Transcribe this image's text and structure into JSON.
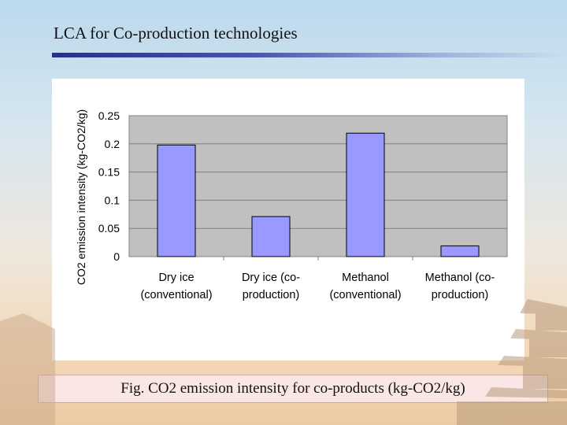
{
  "slide": {
    "title": "LCA for Co-production technologies",
    "caption": "Fig.  CO2 emission intensity for co-products (kg-CO2/kg)"
  },
  "colors": {
    "bar_fill": "#9999ff",
    "plot_background": "#c0c0c0",
    "title_rule": "#2a2e8a",
    "caption_background": "#fbe6e6"
  },
  "chart_data": {
    "type": "bar",
    "title": "",
    "xlabel": "",
    "ylabel": "CO2 emission intensity (kg-CO2/kg)",
    "categories": [
      [
        "Dry ice",
        "(conventional)"
      ],
      [
        "Dry ice (co-",
        "production)"
      ],
      [
        "Methanol",
        "(conventional)"
      ],
      [
        "Methanol (co-",
        "production)"
      ]
    ],
    "values": [
      0.198,
      0.071,
      0.219,
      0.019
    ],
    "ylim": [
      0,
      0.25
    ],
    "yticks": [
      "0",
      "0.05",
      "0.1",
      "0.15",
      "0.2",
      "0.25"
    ],
    "grid": true,
    "legend": "none"
  }
}
